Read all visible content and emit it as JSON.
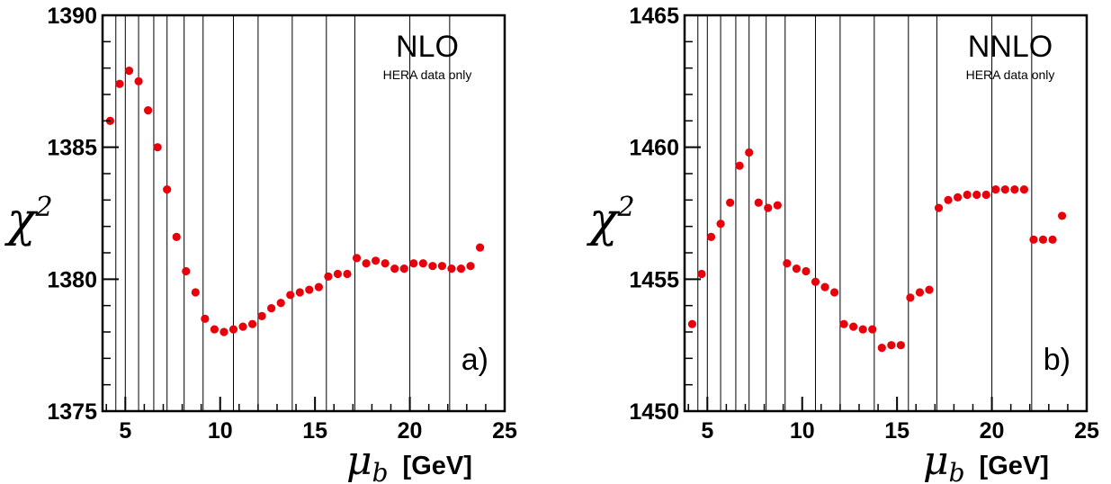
{
  "chart_data": [
    {
      "type": "scatter",
      "title": "NLO",
      "subtitle": "HERA data only",
      "panel_label": "a)",
      "xlabel_symbol": "μ",
      "xlabel_subscript": "b",
      "xlabel_unit": "[GeV]",
      "ylabel_symbol": "χ",
      "ylabel_superscript": "2",
      "xlim": [
        3.8,
        25
      ],
      "ylim": [
        1375,
        1390
      ],
      "xticks": [
        5,
        10,
        15,
        20,
        25
      ],
      "yticks": [
        1375,
        1380,
        1385,
        1390
      ],
      "vlines": [
        4.5,
        5.0,
        5.7,
        6.5,
        7.2,
        8.1,
        9.1,
        10.7,
        12.0,
        13.8,
        15.6,
        17.1,
        20.0,
        22.1
      ],
      "marker_color": "#e8000b",
      "x": [
        4.2,
        4.7,
        5.2,
        5.7,
        6.2,
        6.7,
        7.2,
        7.7,
        8.2,
        8.7,
        9.2,
        9.7,
        10.2,
        10.7,
        11.2,
        11.7,
        12.2,
        12.7,
        13.2,
        13.7,
        14.2,
        14.7,
        15.2,
        15.7,
        16.2,
        16.7,
        17.2,
        17.7,
        18.2,
        18.7,
        19.2,
        19.7,
        20.2,
        20.7,
        21.2,
        21.7,
        22.2,
        22.7,
        23.2,
        23.7
      ],
      "y": [
        1386.0,
        1387.4,
        1387.9,
        1387.5,
        1386.4,
        1385.0,
        1383.4,
        1381.6,
        1380.3,
        1379.5,
        1378.5,
        1378.1,
        1378.0,
        1378.1,
        1378.2,
        1378.3,
        1378.6,
        1378.9,
        1379.1,
        1379.4,
        1379.5,
        1379.6,
        1379.7,
        1380.1,
        1380.2,
        1380.2,
        1380.8,
        1380.6,
        1380.7,
        1380.6,
        1380.4,
        1380.4,
        1380.6,
        1380.6,
        1380.5,
        1380.5,
        1380.4,
        1380.4,
        1380.5,
        1381.2
      ]
    },
    {
      "type": "scatter",
      "title": "NNLO",
      "subtitle": "HERA data only",
      "panel_label": "b)",
      "xlabel_symbol": "μ",
      "xlabel_subscript": "b",
      "xlabel_unit": "[GeV]",
      "ylabel_symbol": "χ",
      "ylabel_superscript": "2",
      "xlim": [
        3.8,
        25
      ],
      "ylim": [
        1450,
        1465
      ],
      "xticks": [
        5,
        10,
        15,
        20,
        25
      ],
      "yticks": [
        1450,
        1455,
        1460,
        1465
      ],
      "vlines": [
        4.5,
        5.0,
        5.7,
        6.5,
        7.2,
        8.1,
        9.1,
        10.7,
        12.0,
        13.8,
        15.6,
        17.1,
        20.0,
        22.1
      ],
      "marker_color": "#e8000b",
      "x": [
        4.2,
        4.7,
        5.2,
        5.7,
        6.2,
        6.7,
        7.2,
        7.7,
        8.2,
        8.7,
        9.2,
        9.7,
        10.2,
        10.7,
        11.2,
        11.7,
        12.2,
        12.7,
        13.2,
        13.7,
        14.2,
        14.7,
        15.2,
        15.7,
        16.2,
        16.7,
        17.2,
        17.7,
        18.2,
        18.7,
        19.2,
        19.7,
        20.2,
        20.7,
        21.2,
        21.7,
        22.2,
        22.7,
        23.2,
        23.7
      ],
      "y": [
        1453.3,
        1455.2,
        1456.6,
        1457.1,
        1457.9,
        1459.3,
        1459.8,
        1457.9,
        1457.7,
        1457.8,
        1455.6,
        1455.4,
        1455.3,
        1454.9,
        1454.7,
        1454.5,
        1453.3,
        1453.2,
        1453.1,
        1453.1,
        1452.4,
        1452.5,
        1452.5,
        1454.3,
        1454.5,
        1454.6,
        1457.7,
        1458.0,
        1458.1,
        1458.2,
        1458.2,
        1458.2,
        1458.4,
        1458.4,
        1458.4,
        1458.4,
        1456.5,
        1456.5,
        1456.5,
        1457.4
      ]
    }
  ]
}
